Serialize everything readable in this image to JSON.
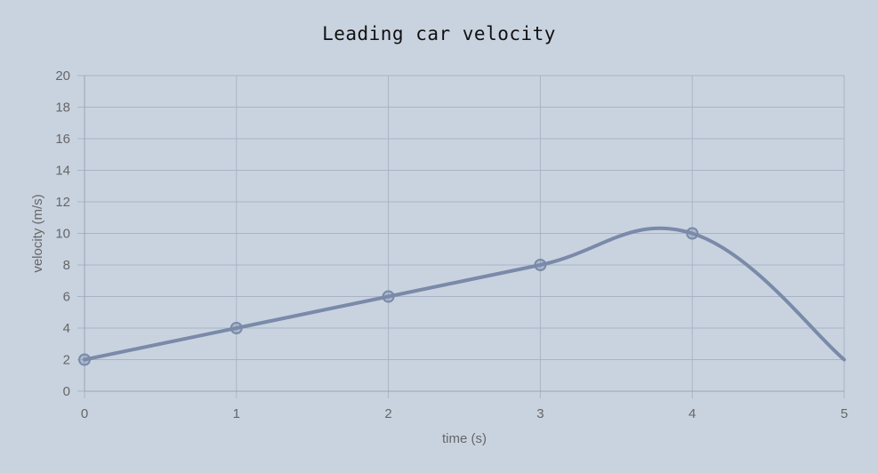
{
  "chart_data": {
    "type": "line",
    "title": "Leading car velocity",
    "xlabel": "time (s)",
    "ylabel": "velocity (m/s)",
    "xlim": [
      0,
      5
    ],
    "ylim": [
      0,
      20
    ],
    "x_ticks": [
      "0",
      "1",
      "2",
      "3",
      "4",
      "5"
    ],
    "y_ticks": [
      "0",
      "2",
      "4",
      "6",
      "8",
      "10",
      "12",
      "14",
      "16",
      "18",
      "20"
    ],
    "grid": true,
    "legend": "none",
    "series": [
      {
        "x": [
          0,
          1,
          2,
          3,
          4,
          5
        ],
        "y": [
          2,
          4,
          6,
          8,
          10,
          2
        ],
        "smooth": true,
        "markers_on": [
          0,
          1,
          2,
          3,
          4
        ],
        "color": "#7a8aa8"
      }
    ]
  }
}
